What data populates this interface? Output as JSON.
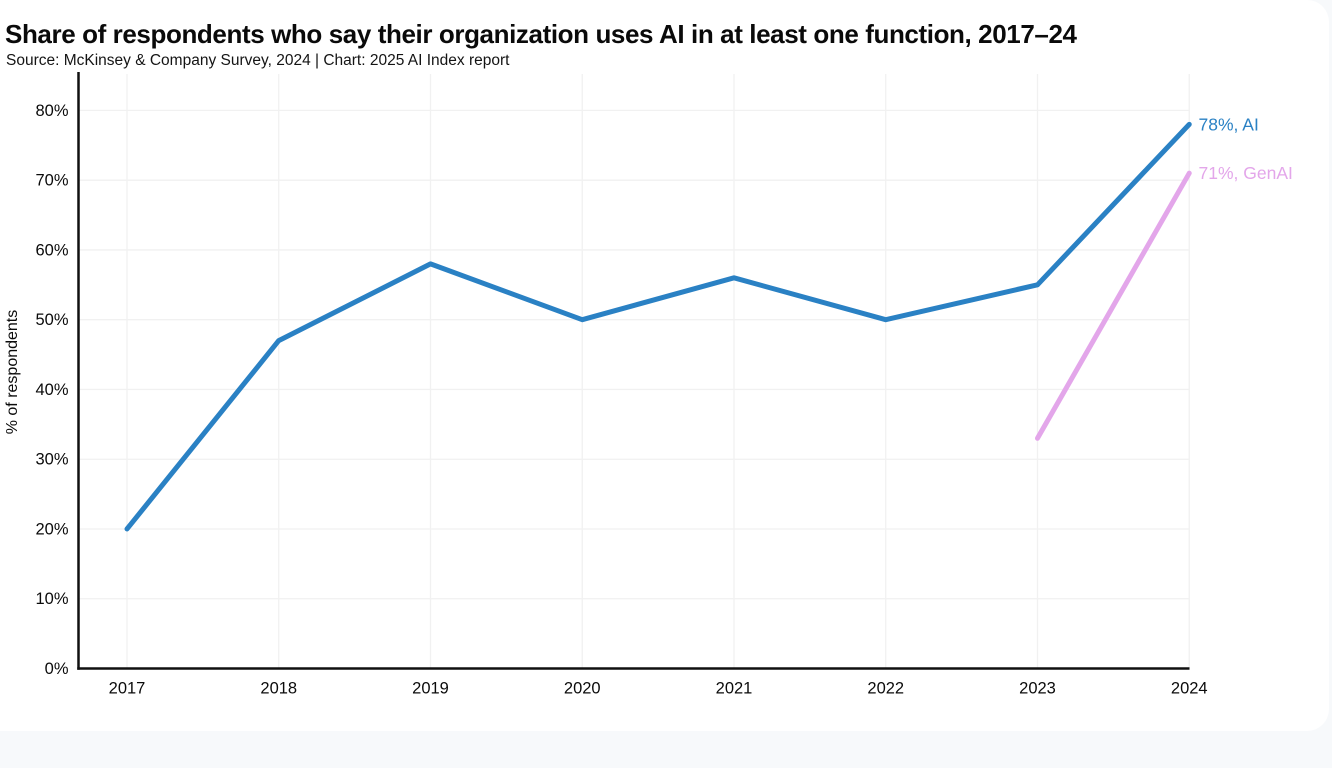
{
  "page": {
    "title": "Share of respondents who say their organization uses AI in at least one function, 2017–24",
    "subtitle": "Source: McKinsey & Company Survey, 2024 | Chart: 2025 AI Index report"
  },
  "chart_data": {
    "type": "line",
    "title": "Share of respondents who say their organization uses AI in at least one function, 2017–24",
    "source": "Source: McKinsey & Company Survey, 2024 | Chart: 2025 AI Index report",
    "x": [
      "2017",
      "2018",
      "2019",
      "2020",
      "2021",
      "2022",
      "2023",
      "2024"
    ],
    "series": [
      {
        "name": "AI",
        "color": "#2A81C4",
        "values": [
          20,
          47,
          58,
          50,
          56,
          50,
          55,
          78
        ],
        "end_label": "78%, AI"
      },
      {
        "name": "GenAI",
        "color": "#E3A6EA",
        "values": [
          null,
          null,
          null,
          null,
          null,
          null,
          33,
          71
        ],
        "end_label": "71%, GenAI"
      }
    ],
    "xlabel": "",
    "ylabel": "% of respondents",
    "ylim": [
      0,
      80
    ],
    "y_ticks": [
      0,
      10,
      20,
      30,
      40,
      50,
      60,
      70,
      80
    ],
    "y_tick_labels": [
      "0%",
      "10%",
      "20%",
      "30%",
      "40%",
      "50%",
      "60%",
      "70%",
      "80%"
    ],
    "grid": true,
    "legend_position": "end-of-line-labels"
  },
  "colors": {
    "accent_blue": "#2A81C4",
    "accent_pink": "#E3A6EA",
    "grid": "#F1F1F1",
    "axis": "#101010",
    "text": "#0B0B0B",
    "card_bg": "#FFFFFF",
    "page_bg": "#F7F9FB"
  }
}
